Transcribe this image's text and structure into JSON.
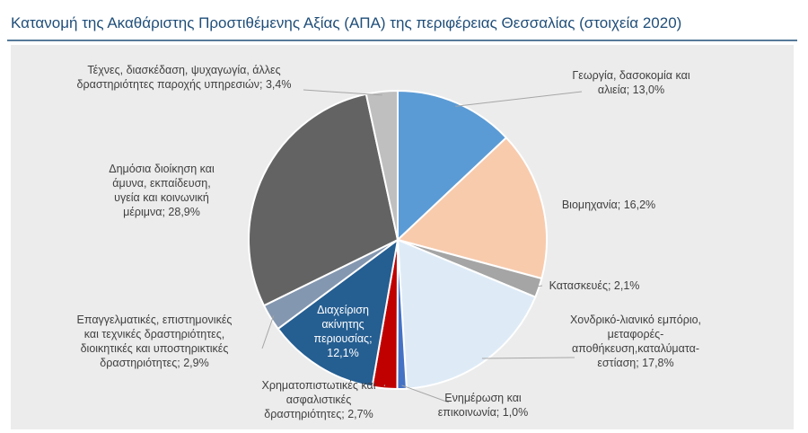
{
  "chart_data": {
    "type": "pie",
    "title": "Κατανομή της Ακαθάριστης Προστιθέμενης Αξίας (ΑΠΑ) της περιφέρειας Θεσσαλίας (στοιχεία 2020)",
    "values": [
      13.0,
      16.2,
      2.1,
      17.8,
      1.0,
      2.7,
      12.1,
      2.9,
      28.9,
      3.4
    ],
    "value_labels": [
      "Γεωργία, δασοκομία και\nαλιεία; 13,0%",
      "Βιομηχανία; 16,2%",
      "Κατασκευές; 2,1%",
      "Χονδρικό-λιανικό εμπόριο,\nμεταφορές-\nαποθήκευση,καταλύματα-\nεστίαση; 17,8%",
      "Ενημέρωση και\nεπικοινωνία; 1,0%",
      "Χρηματοπιστωτικές και\nασφαλιστικές\nδραστηριότητες; 2,7%",
      "Διαχείριση\nακίνητης\nπεριουσίας;\n12,1%",
      "Επαγγελματικές, επιστημονικές\nκαι τεχνικές δραστηριότητες,\nδιοικητικές και υποστηρικτικές\nδραστηριότητες; 2,9%",
      "Δημόσια διοίκηση και\nάμυνα, εκπαίδευση,\nυγεία και κοινωνική\nμέριμνα; 28,9%",
      "Τέχνες, διασκέδαση, ψυχαγωγία, άλλες\nδραστηριότητες παροχής υπηρεσιών; 3,4%"
    ],
    "colors": [
      "#5b9bd5",
      "#f8cbad",
      "#a5a5a5",
      "#deebf7",
      "#4472c4",
      "#c00000",
      "#255e91",
      "#8497b0",
      "#636363",
      "#bfbfbf"
    ]
  }
}
